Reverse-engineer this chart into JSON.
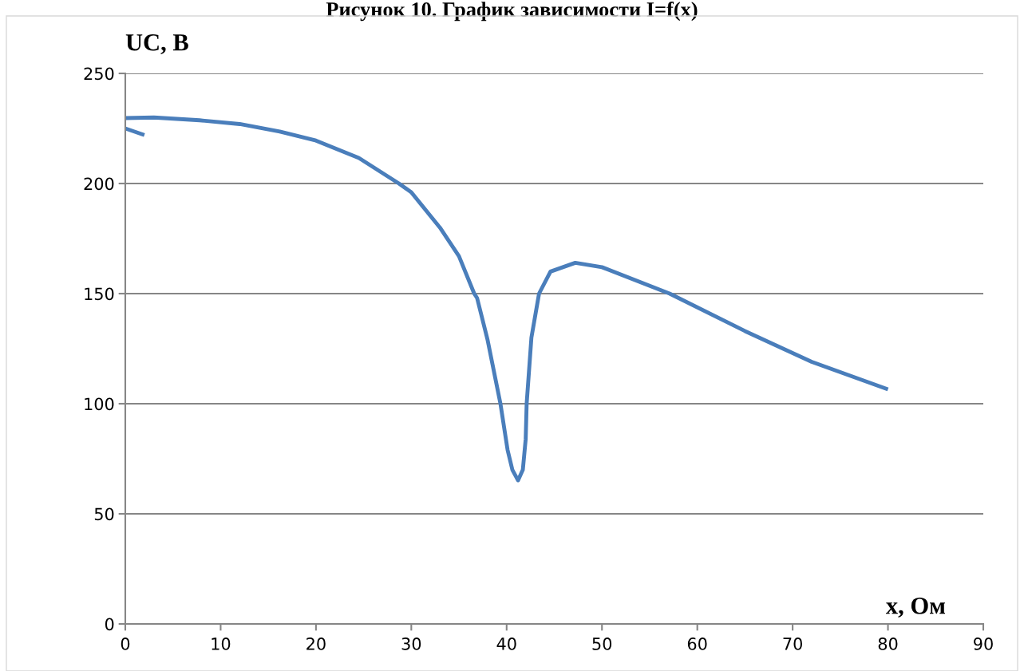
{
  "chart_data": {
    "type": "line",
    "title": "Рисунок 10. График зависимости I=f(x)",
    "xlabel": "x, Ом",
    "ylabel": "UC, В",
    "series": [
      {
        "color": "#4a7ebb",
        "x": [
          0,
          3,
          7.8,
          12,
          16.2,
          20,
          24.5,
          28.7,
          30,
          33,
          35,
          36.6,
          36.9,
          38,
          39.35,
          40.1,
          40.6,
          41.2,
          41.7,
          42.0,
          42.1,
          42.6,
          43.4,
          44.6,
          47.2,
          50,
          57.1,
          65,
          72,
          80
        ],
        "values": [
          229.7,
          230,
          228.7,
          227,
          223.6,
          219.5,
          211.6,
          200,
          196,
          180,
          167,
          150,
          148,
          129,
          100,
          79,
          70,
          65.2,
          70,
          84,
          100,
          130,
          150,
          160,
          164,
          162,
          150,
          133,
          119,
          106.5
        ]
      },
      {
        "color": "#4a7ebb",
        "x": [
          0,
          2
        ],
        "values": [
          225,
          222
        ]
      }
    ],
    "xlim": [
      0,
      90
    ],
    "xticks": [
      0,
      10,
      20,
      30,
      40,
      50,
      60,
      70,
      80,
      90
    ],
    "ylim": [
      0,
      250
    ],
    "yticks": [
      0,
      50,
      100,
      150,
      200,
      250
    ],
    "grid": "y"
  }
}
